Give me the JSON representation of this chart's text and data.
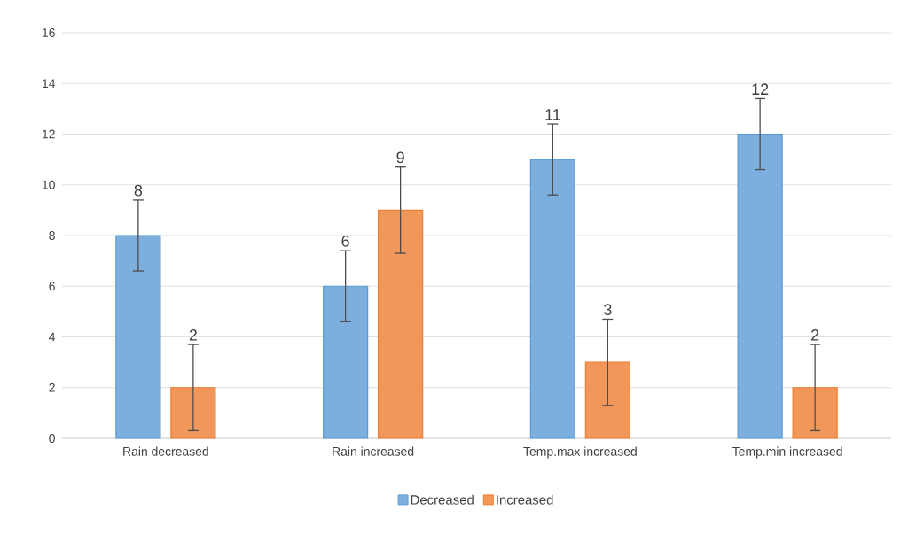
{
  "chart_data": {
    "type": "bar",
    "categories": [
      "Rain decreased",
      "Rain increased",
      "Temp.max increased",
      "Temp.min increased"
    ],
    "series": [
      {
        "name": "Decreased",
        "color": "#5b9bd5",
        "values": [
          8,
          6,
          11,
          12
        ],
        "errors": [
          1.4,
          1.4,
          1.4,
          1.4
        ]
      },
      {
        "name": "Increased",
        "color": "#ed7d31",
        "values": [
          2,
          9,
          3,
          2
        ],
        "errors": [
          1.7,
          1.7,
          1.7,
          1.7
        ]
      }
    ],
    "ylim": [
      0,
      16
    ],
    "yticks": [
      0,
      2,
      4,
      6,
      8,
      10,
      12,
      14,
      16
    ],
    "grid": "y",
    "legend": "bottom",
    "data_labels": true
  }
}
